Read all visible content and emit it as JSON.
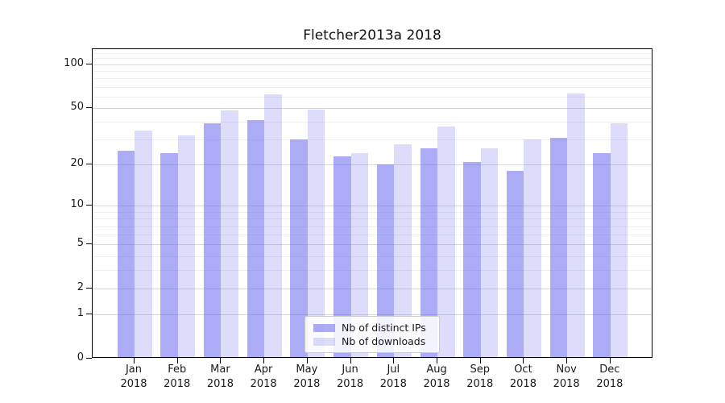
{
  "chart_data": {
    "type": "bar",
    "title": "Fletcher2013a 2018",
    "categories": [
      "Jan",
      "Feb",
      "Mar",
      "Apr",
      "May",
      "Jun",
      "Jul",
      "Aug",
      "Sep",
      "Oct",
      "Nov",
      "Dec"
    ],
    "category_year_label": "2018",
    "series": [
      {
        "name": "Nb of distinct IPs",
        "color": "rgba(102,102,238,0.55)",
        "values": [
          25,
          24,
          39,
          41,
          30,
          23,
          20,
          26,
          21,
          18,
          31,
          24
        ]
      },
      {
        "name": "Nb of downloads",
        "color": "rgba(102,102,238,0.22)",
        "values": [
          35,
          32,
          48,
          62,
          49,
          24,
          28,
          37,
          26,
          30,
          63,
          39
        ]
      }
    ],
    "xlabel": "",
    "ylabel": "",
    "yscale": "log1p",
    "ylim": [
      0,
      127
    ],
    "y_major_ticks": [
      100,
      50,
      20,
      10,
      5,
      2,
      1,
      0
    ],
    "y_minor_ticks": [
      3,
      4,
      6,
      7,
      8,
      9,
      30,
      40,
      60,
      70,
      80,
      90,
      110,
      120
    ],
    "grid": true,
    "legend_position": "lower center",
    "colors": {
      "bar_base": "#6666ee",
      "grid_major": "#d8d8d8",
      "grid_minor": "#efefef",
      "spine": "#000000",
      "text": "#1a1a1a",
      "background": "#ffffff"
    }
  }
}
